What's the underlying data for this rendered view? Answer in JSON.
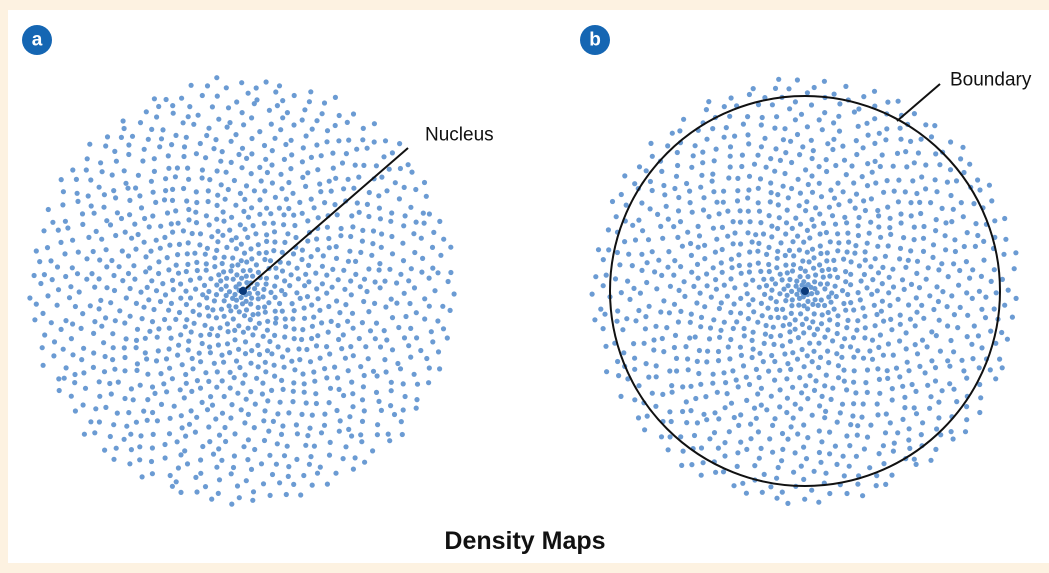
{
  "panels": [
    {
      "label": "a",
      "annotation": "Nucleus"
    },
    {
      "label": "b",
      "annotation": "Boundary"
    }
  ],
  "caption": "Density Maps"
}
